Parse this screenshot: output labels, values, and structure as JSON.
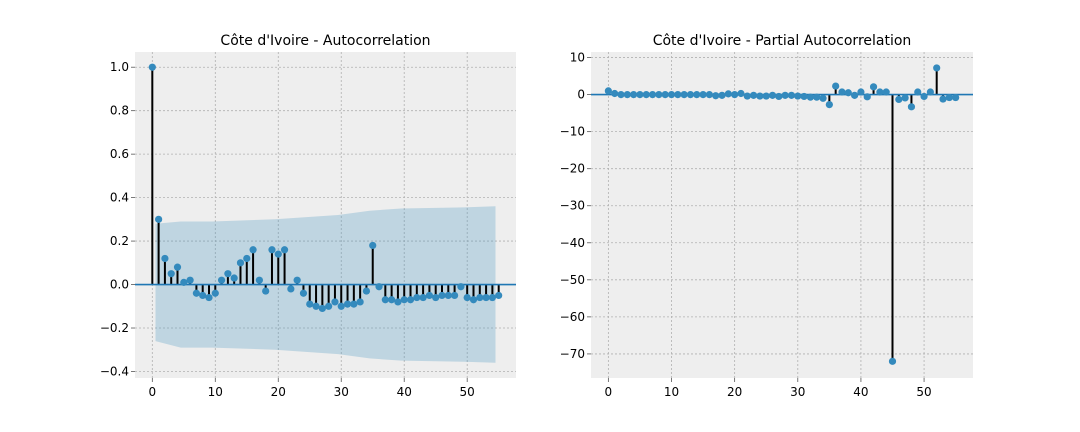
{
  "chart_data": [
    {
      "type": "stem",
      "title": "Côte d'Ivoire - Autocorrelation",
      "xlabel": "",
      "ylabel": "",
      "xlim": [
        -2.75,
        57.75
      ],
      "ylim": [
        -0.43,
        1.07
      ],
      "xticks": [
        0,
        10,
        20,
        30,
        40,
        50
      ],
      "yticks": [
        -0.4,
        -0.2,
        0.0,
        0.2,
        0.4,
        0.6,
        0.8,
        1.0
      ],
      "ytick_labels": [
        "−0.4",
        "−0.2",
        "0.0",
        "0.2",
        "0.4",
        "0.6",
        "0.8",
        "1.0"
      ],
      "grid": true,
      "lags": [
        0,
        1,
        2,
        3,
        4,
        5,
        6,
        7,
        8,
        9,
        10,
        11,
        12,
        13,
        14,
        15,
        16,
        17,
        18,
        19,
        20,
        21,
        22,
        23,
        24,
        25,
        26,
        27,
        28,
        29,
        30,
        31,
        32,
        33,
        34,
        35,
        36,
        37,
        38,
        39,
        40,
        41,
        42,
        43,
        44,
        45,
        46,
        47,
        48,
        49,
        50,
        51,
        52,
        53,
        54,
        55
      ],
      "values": [
        1.0,
        0.3,
        0.12,
        0.05,
        0.08,
        0.01,
        0.02,
        -0.04,
        -0.05,
        -0.06,
        -0.04,
        0.02,
        0.05,
        0.03,
        0.1,
        0.12,
        0.16,
        0.02,
        -0.03,
        0.16,
        0.14,
        0.16,
        -0.02,
        0.02,
        -0.04,
        -0.09,
        -0.1,
        -0.11,
        -0.1,
        -0.08,
        -0.1,
        -0.09,
        -0.09,
        -0.08,
        -0.03,
        0.18,
        -0.01,
        -0.07,
        -0.07,
        -0.08,
        -0.07,
        -0.07,
        -0.06,
        -0.06,
        -0.05,
        -0.06,
        -0.05,
        -0.05,
        -0.05,
        -0.01,
        -0.06,
        -0.07,
        -0.06,
        -0.06,
        -0.06,
        -0.05
      ],
      "confidence_band": {
        "lags": [
          1,
          5,
          10,
          20,
          30,
          35,
          40,
          50,
          55
        ],
        "upper": [
          0.28,
          0.29,
          0.29,
          0.3,
          0.32,
          0.34,
          0.35,
          0.355,
          0.36
        ],
        "lower": [
          -0.26,
          -0.29,
          -0.29,
          -0.3,
          -0.32,
          -0.34,
          -0.35,
          -0.355,
          -0.36
        ]
      },
      "colors": {
        "marker": "#348abd",
        "stem": "#000000",
        "band": "#348abd",
        "baseline": "#1f77b4",
        "background": "#eeeeee",
        "grid": "#b0b0b0"
      }
    },
    {
      "type": "stem",
      "title": "Côte d'Ivoire - Partial Autocorrelation",
      "xlabel": "",
      "ylabel": "",
      "xlim": [
        -2.75,
        57.75
      ],
      "ylim": [
        -76.5,
        11.5
      ],
      "xticks": [
        0,
        10,
        20,
        30,
        40,
        50
      ],
      "yticks": [
        -70,
        -60,
        -50,
        -40,
        -30,
        -20,
        -10,
        0,
        10
      ],
      "ytick_labels": [
        "−70",
        "−60",
        "−50",
        "−40",
        "−30",
        "−20",
        "−10",
        "0",
        "10"
      ],
      "grid": true,
      "lags": [
        0,
        1,
        2,
        3,
        4,
        5,
        6,
        7,
        8,
        9,
        10,
        11,
        12,
        13,
        14,
        15,
        16,
        17,
        18,
        19,
        20,
        21,
        22,
        23,
        24,
        25,
        26,
        27,
        28,
        29,
        30,
        31,
        32,
        33,
        34,
        35,
        36,
        37,
        38,
        39,
        40,
        41,
        42,
        43,
        44,
        45,
        46,
        47,
        48,
        49,
        50,
        51,
        52,
        53,
        54,
        55
      ],
      "values": [
        1.0,
        0.3,
        0.0,
        0.0,
        0.0,
        0.0,
        0.0,
        0.0,
        0.0,
        0.0,
        0.0,
        0.0,
        0.0,
        0.0,
        0.0,
        0.0,
        0.0,
        -0.3,
        -0.2,
        0.2,
        0.0,
        0.3,
        -0.4,
        -0.2,
        -0.4,
        -0.4,
        -0.2,
        -0.5,
        -0.2,
        -0.2,
        -0.4,
        -0.5,
        -0.7,
        -0.7,
        -1.0,
        -2.7,
        2.3,
        0.7,
        0.5,
        -0.2,
        0.7,
        -0.6,
        2.1,
        0.7,
        0.7,
        -72.0,
        -1.3,
        -0.9,
        -3.3,
        0.7,
        -0.5,
        0.7,
        7.2,
        -1.2,
        -0.8,
        -0.8
      ],
      "colors": {
        "marker": "#348abd",
        "stem": "#000000",
        "baseline": "#1f77b4",
        "background": "#eeeeee",
        "grid": "#b0b0b0"
      }
    }
  ]
}
